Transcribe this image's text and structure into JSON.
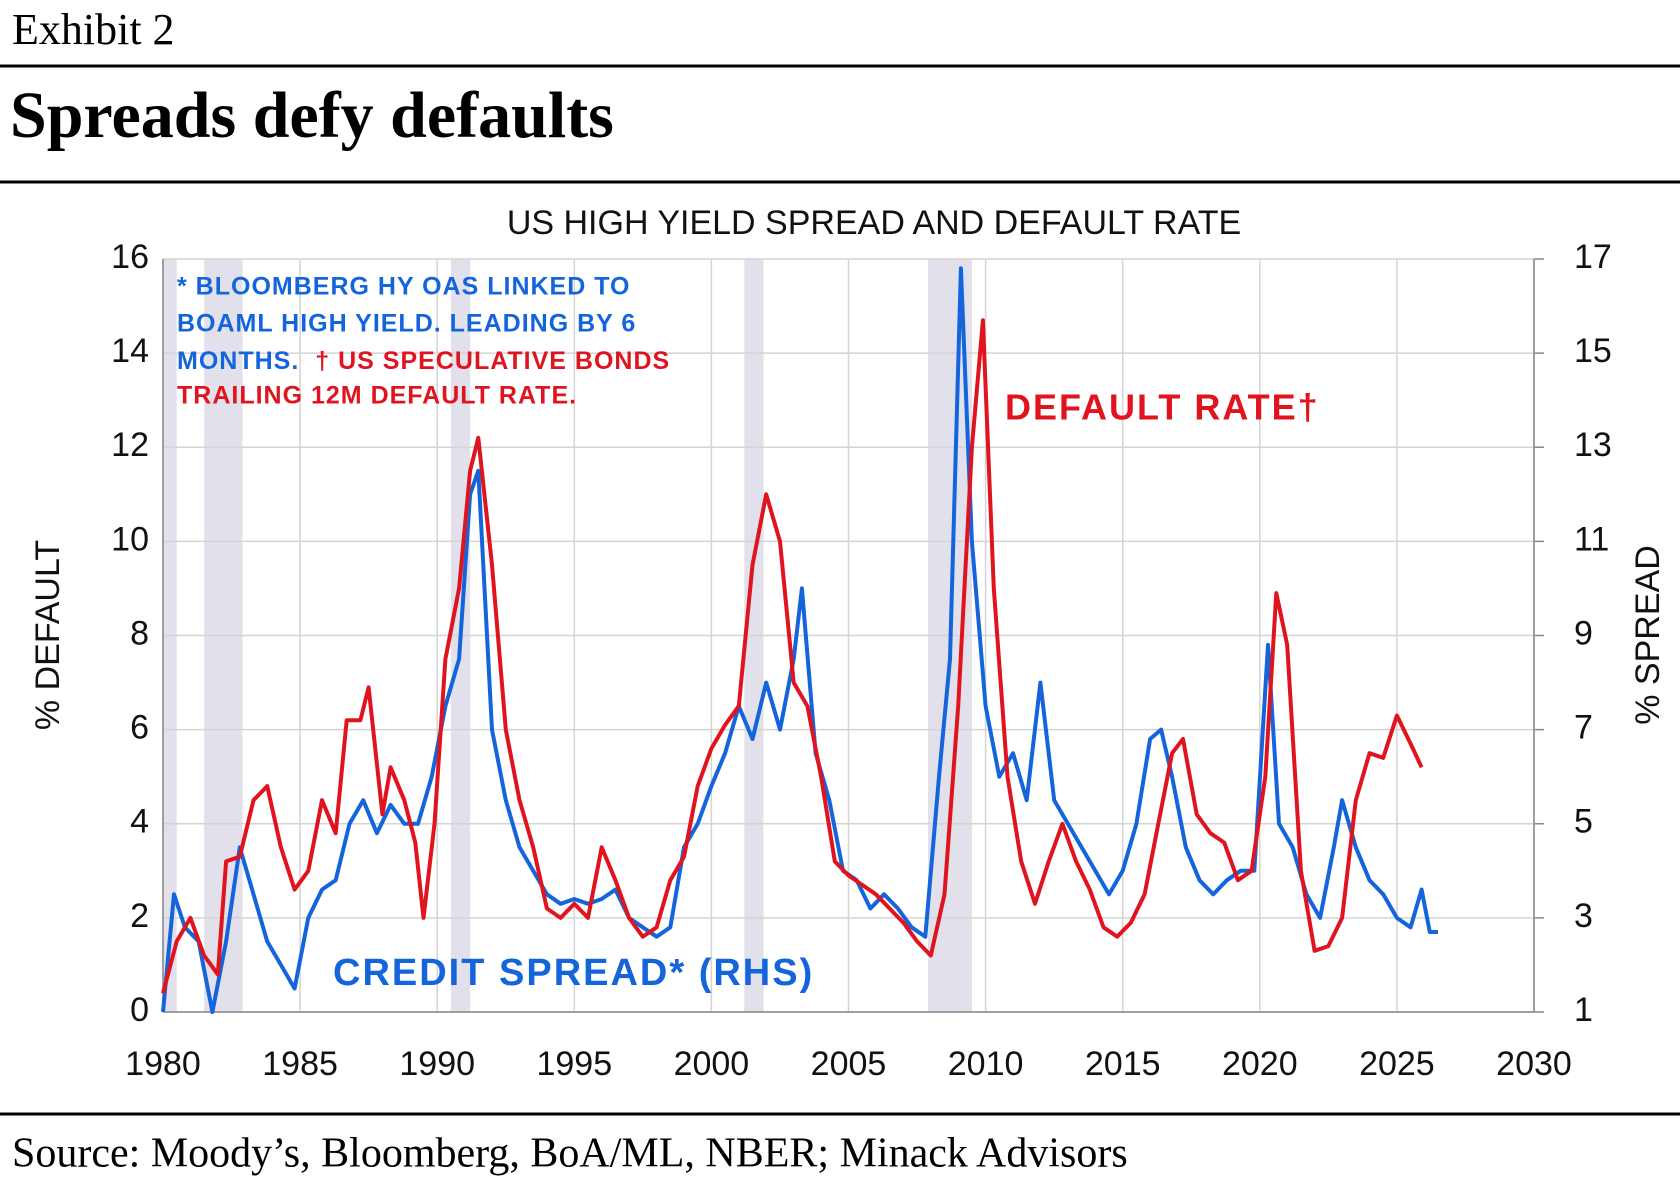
{
  "header": {
    "exhibit": "Exhibit 2",
    "title": "Spreads defy defaults",
    "source": "Source: Moody’s, Bloomberg, BoA/ML, NBER; Minack Advisors"
  },
  "chart_data": {
    "type": "line",
    "title": "US HIGH YIELD SPREAD AND DEFAULT RATE",
    "ylabel": "% DEFAULT",
    "y2label": "% SPREAD",
    "xlim": [
      1980,
      2030
    ],
    "xticks": [
      1980,
      1985,
      1990,
      1995,
      2000,
      2005,
      2010,
      2015,
      2020,
      2025,
      2030
    ],
    "ylim": [
      0,
      16
    ],
    "yticks": [
      0,
      2,
      4,
      6,
      8,
      10,
      12,
      14,
      16
    ],
    "y2lim": [
      1,
      17
    ],
    "y2ticks": [
      1,
      3,
      5,
      7,
      9,
      11,
      13,
      15,
      17
    ],
    "grid": true,
    "shaded_periods": [
      [
        1980,
        1980.5
      ],
      [
        1981.5,
        1982.9
      ],
      [
        1990.5,
        1991.2
      ],
      [
        2001.2,
        2001.9
      ],
      [
        2007.9,
        2009.5
      ]
    ],
    "shade_color": "#e2e0ea",
    "notes": [
      "* BLOOMBERG HY OAS LINKED TO",
      "BOAML HIGH YIELD. LEADING BY 6",
      "MONTHS.",
      "† US SPECULATIVE BONDS",
      "TRAILING 12M DEFAULT RATE."
    ],
    "annotations": [
      "DEFAULT RATE†",
      "CREDIT SPREAD* (RHS)"
    ],
    "series": [
      {
        "name": "DEFAULT RATE†",
        "color": "#e0141e",
        "x": [
          1980,
          1980.5,
          1981,
          1981.5,
          1982,
          1982.3,
          1982.8,
          1983.3,
          1983.8,
          1984.3,
          1984.8,
          1985.3,
          1985.8,
          1986.3,
          1986.7,
          1987.2,
          1987.5,
          1988,
          1988.3,
          1988.8,
          1989.2,
          1989.5,
          1989.9,
          1990.3,
          1990.8,
          1991.2,
          1991.5,
          1992,
          1992.5,
          1993,
          1993.5,
          1994,
          1994.5,
          1995,
          1995.5,
          1996,
          1996.5,
          1997,
          1997.5,
          1998,
          1998.5,
          1999,
          1999.5,
          2000,
          2000.5,
          2001,
          2001.5,
          2002,
          2002.5,
          2003,
          2003.5,
          2004,
          2004.5,
          2005,
          2005.5,
          2006,
          2006.5,
          2007,
          2007.5,
          2008,
          2008.5,
          2009,
          2009.5,
          2009.9,
          2010.3,
          2010.8,
          2011.3,
          2011.8,
          2012.3,
          2012.8,
          2013.3,
          2013.8,
          2014.3,
          2014.8,
          2015.3,
          2015.8,
          2016.3,
          2016.8,
          2017.2,
          2017.7,
          2018.2,
          2018.7,
          2019.2,
          2019.7,
          2020.2,
          2020.6,
          2021,
          2021.5,
          2022,
          2022.5,
          2023,
          2023.5,
          2024,
          2024.5,
          2025,
          2025.5,
          2025.9
        ],
        "values": [
          0.4,
          1.5,
          2.0,
          1.2,
          0.8,
          3.2,
          3.3,
          4.5,
          4.8,
          3.5,
          2.6,
          3.0,
          4.5,
          3.8,
          6.2,
          6.2,
          6.9,
          4.2,
          5.2,
          4.5,
          3.6,
          2.0,
          4.0,
          7.5,
          9.0,
          11.5,
          12.2,
          9.5,
          6.0,
          4.5,
          3.5,
          2.2,
          2.0,
          2.3,
          2.0,
          3.5,
          2.8,
          2.0,
          1.6,
          1.8,
          2.8,
          3.3,
          4.8,
          5.6,
          6.1,
          6.5,
          9.5,
          11.0,
          10.0,
          7.0,
          6.5,
          5.0,
          3.2,
          2.9,
          2.7,
          2.5,
          2.2,
          1.9,
          1.5,
          1.2,
          2.5,
          6.5,
          12.0,
          14.7,
          9.0,
          5.0,
          3.2,
          2.3,
          3.2,
          4.0,
          3.2,
          2.6,
          1.8,
          1.6,
          1.9,
          2.5,
          4.0,
          5.5,
          5.8,
          4.2,
          3.8,
          3.6,
          2.8,
          3.0,
          5.0,
          8.9,
          7.8,
          3.0,
          1.3,
          1.4,
          2.0,
          4.5,
          5.5,
          5.4,
          6.3,
          5.7,
          5.2
        ]
      },
      {
        "name": "CREDIT SPREAD* (RHS)",
        "color": "#1464dc",
        "axis": "y2",
        "x": [
          1980,
          1980.4,
          1980.8,
          1981.3,
          1981.8,
          1982.3,
          1982.8,
          1983.3,
          1983.8,
          1984.3,
          1984.8,
          1985.3,
          1985.8,
          1986.3,
          1986.8,
          1987.3,
          1987.8,
          1988.3,
          1988.8,
          1989.3,
          1989.8,
          1990.3,
          1990.8,
          1991.2,
          1991.5,
          1992,
          1992.5,
          1993,
          1993.5,
          1994,
          1994.5,
          1995,
          1995.5,
          1996,
          1996.5,
          1997,
          1997.5,
          1998,
          1998.5,
          1999,
          1999.5,
          2000,
          2000.5,
          2001,
          2001.5,
          2002,
          2002.5,
          2003,
          2003.3,
          2003.8,
          2004.3,
          2004.8,
          2005.3,
          2005.8,
          2006.3,
          2006.8,
          2007.3,
          2007.8,
          2008.3,
          2008.7,
          2009.1,
          2009.5,
          2010,
          2010.5,
          2011,
          2011.5,
          2012,
          2012.5,
          2013,
          2013.5,
          2014,
          2014.5,
          2015,
          2015.5,
          2016,
          2016.4,
          2016.8,
          2017.3,
          2017.8,
          2018.3,
          2018.8,
          2019.3,
          2019.8,
          2020.3,
          2020.7,
          2021.2,
          2021.7,
          2022.2,
          2022.7,
          2023,
          2023.5,
          2024,
          2024.5,
          2025,
          2025.5,
          2025.9,
          2026.2,
          2026.5
        ],
        "values": [
          1.0,
          3.5,
          2.8,
          2.5,
          1.0,
          2.5,
          4.5,
          3.5,
          2.5,
          2.0,
          1.5,
          3.0,
          3.6,
          3.8,
          5.0,
          5.5,
          4.8,
          5.4,
          5.0,
          5.0,
          6.0,
          7.5,
          8.5,
          12.0,
          12.5,
          7.0,
          5.5,
          4.5,
          4.0,
          3.5,
          3.3,
          3.4,
          3.3,
          3.4,
          3.6,
          3.0,
          2.8,
          2.6,
          2.8,
          4.5,
          5.0,
          5.8,
          6.5,
          7.5,
          6.8,
          8.0,
          7.0,
          8.5,
          10.0,
          6.5,
          5.5,
          4.0,
          3.8,
          3.2,
          3.5,
          3.2,
          2.8,
          2.6,
          6.0,
          8.5,
          16.8,
          11.0,
          7.5,
          6.0,
          6.5,
          5.5,
          8.0,
          5.5,
          5.0,
          4.5,
          4.0,
          3.5,
          4.0,
          5.0,
          6.8,
          7.0,
          6.0,
          4.5,
          3.8,
          3.5,
          3.8,
          4.0,
          4.0,
          8.8,
          5.0,
          4.5,
          3.5,
          3.0,
          4.5,
          5.5,
          4.5,
          3.8,
          3.5,
          3.0,
          2.8,
          3.6,
          2.7,
          2.7
        ]
      }
    ]
  }
}
